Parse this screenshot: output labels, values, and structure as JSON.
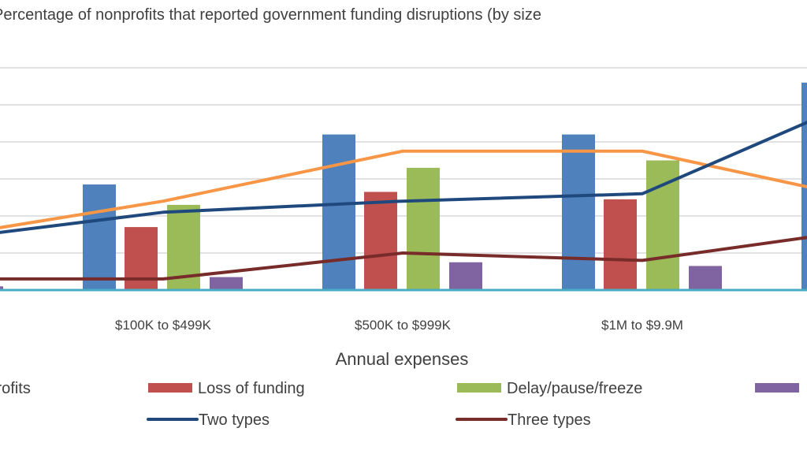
{
  "chart_data": {
    "type": "bar",
    "title": "Percentage of nonprofits that reported government funding disruptions (by size",
    "xlabel": "Annual expenses",
    "ylabel": "",
    "ylim": [
      0,
      60
    ],
    "grid": true,
    "legend_placement": "bottom",
    "categories": [
      "",
      "$100K to $499K",
      "$500K to $999K",
      "$1M to $9.9M",
      ""
    ],
    "bar_series": [
      {
        "name": "nonprofits",
        "color": "#4F81BD",
        "values": [
          null,
          28.5,
          42,
          42,
          56
        ]
      },
      {
        "name": "Loss of funding",
        "color": "#C0504D",
        "values": [
          null,
          17,
          26.5,
          24.5,
          null
        ]
      },
      {
        "name": "Delay/pause/freeze",
        "color": "#9BBB59",
        "values": [
          null,
          23,
          33,
          35,
          null
        ]
      },
      {
        "name": "",
        "color": "#8064A2",
        "values": [
          1,
          3.5,
          7.5,
          6.5,
          null
        ]
      }
    ],
    "line_series": [
      {
        "name": "",
        "color": "#F79646",
        "values": [
          13.5,
          24,
          37.5,
          37.5,
          23.5
        ]
      },
      {
        "name": "Two types",
        "color": "#1F497D",
        "values": [
          13,
          21,
          24,
          26,
          54
        ]
      },
      {
        "name": "Three types",
        "color": "#772C2A",
        "values": [
          3,
          3,
          10,
          8,
          17
        ]
      }
    ],
    "baseline_color": "#4BACC6"
  }
}
